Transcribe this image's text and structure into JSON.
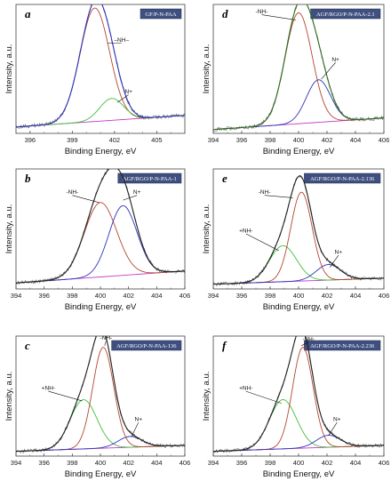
{
  "chart_data": [
    {
      "type": "line",
      "letter": "a",
      "title": "GF/P-N-PAA",
      "xlabel": "Binding Energy, eV",
      "ylabel": "Intensity, a.u.",
      "xlim": [
        395,
        407
      ],
      "xticks": [
        396,
        399,
        402,
        405
      ],
      "background": {
        "y0": 0.05,
        "y1": 0.14
      },
      "components": [
        {
          "name": "-NH-",
          "center": 400.6,
          "height": 0.88,
          "width": 1.05,
          "color": "#b5452f"
        },
        {
          "name": "N+",
          "center": 401.8,
          "height": 0.17,
          "width": 0.85,
          "color": "#3fbf3f"
        }
      ],
      "envelope_color": "#2f34b8",
      "annotations": [
        {
          "text": "–NH–",
          "x": 401.5,
          "y": 0.7,
          "label_x": 402.5,
          "label_y": 0.7
        },
        {
          "text": "N+",
          "x": 402.2,
          "y": 0.24,
          "label_x": 403.0,
          "label_y": 0.3
        }
      ]
    },
    {
      "type": "line",
      "letter": "d",
      "title": "AGF/RGO/P-N-PAA-2.1",
      "xlabel": "Binding Energy, eV",
      "ylabel": "Intensity, a.u.",
      "xlim": [
        394,
        406
      ],
      "xticks": [
        394,
        396,
        398,
        400,
        402,
        404,
        406
      ],
      "background": {
        "y0": 0.03,
        "y1": 0.12
      },
      "components": [
        {
          "name": "-NH-",
          "center": 400.0,
          "height": 0.86,
          "width": 0.95,
          "color": "#b5452f"
        },
        {
          "name": "N+",
          "center": 401.4,
          "height": 0.33,
          "width": 0.85,
          "color": "#2f34b8"
        }
      ],
      "envelope_color": "#2d6e1e",
      "annotations": [
        {
          "text": "-NH-",
          "x": 399.8,
          "y": 0.88,
          "label_x": 397.4,
          "label_y": 0.92
        },
        {
          "text": "N+",
          "x": 401.6,
          "y": 0.42,
          "label_x": 402.6,
          "label_y": 0.55
        }
      ]
    },
    {
      "type": "line",
      "letter": "b",
      "title": "AGF/RGO/P-N-PAA-1",
      "xlabel": "Binding Energy, eV",
      "ylabel": "Intensity, a.u.",
      "xlim": [
        394,
        406
      ],
      "xticks": [
        394,
        396,
        398,
        400,
        402,
        404,
        406
      ],
      "background": {
        "y0": 0.05,
        "y1": 0.15
      },
      "components": [
        {
          "name": "-NH-",
          "center": 400.0,
          "height": 0.62,
          "width": 1.15,
          "color": "#b5452f"
        },
        {
          "name": "N+",
          "center": 401.6,
          "height": 0.58,
          "width": 1.0,
          "color": "#2f34b8"
        }
      ],
      "envelope_color": "#222222",
      "annotations": [
        {
          "text": "-NH-",
          "x": 399.9,
          "y": 0.72,
          "label_x": 398.0,
          "label_y": 0.78
        },
        {
          "text": "N+",
          "x": 401.6,
          "y": 0.74,
          "label_x": 402.6,
          "label_y": 0.78
        }
      ]
    },
    {
      "type": "line",
      "letter": "e",
      "title": "AGF/RGO/P-N-PAA-2.136",
      "xlabel": "Binding Energy, eV",
      "ylabel": "Intensity, a.u.",
      "xlim": [
        394,
        406
      ],
      "xticks": [
        394,
        396,
        398,
        400,
        402,
        404,
        406
      ],
      "background": {
        "y0": 0.04,
        "y1": 0.09
      },
      "components": [
        {
          "name": "+NH-",
          "center": 398.9,
          "height": 0.3,
          "width": 0.95,
          "color": "#3fbf3f"
        },
        {
          "name": "-NH-",
          "center": 400.2,
          "height": 0.74,
          "width": 0.75,
          "color": "#b5452f"
        },
        {
          "name": "N+",
          "center": 402.1,
          "height": 0.13,
          "width": 0.85,
          "color": "#2f34b8"
        }
      ],
      "envelope_color": "#222222",
      "annotations": [
        {
          "text": "-NH-",
          "x": 399.6,
          "y": 0.76,
          "label_x": 397.6,
          "label_y": 0.78
        },
        {
          "text": "+NH-",
          "x": 398.6,
          "y": 0.32,
          "label_x": 396.3,
          "label_y": 0.46
        },
        {
          "text": "N+",
          "x": 402.2,
          "y": 0.18,
          "label_x": 402.8,
          "label_y": 0.28
        }
      ]
    },
    {
      "type": "line",
      "letter": "c",
      "title": "AGF/RGO/P-N-PAA-136",
      "xlabel": "Binding Energy, eV",
      "ylabel": "Intensity, a.u.",
      "xlim": [
        394,
        406
      ],
      "xticks": [
        394,
        396,
        398,
        400,
        402,
        404,
        406
      ],
      "background": {
        "y0": 0.04,
        "y1": 0.09
      },
      "components": [
        {
          "name": "+NH-",
          "center": 398.8,
          "height": 0.41,
          "width": 0.95,
          "color": "#3fbf3f"
        },
        {
          "name": "-NH-",
          "center": 400.2,
          "height": 0.84,
          "width": 0.75,
          "color": "#b5452f"
        },
        {
          "name": "N+",
          "center": 402.1,
          "height": 0.09,
          "width": 0.85,
          "color": "#2f34b8"
        }
      ],
      "envelope_color": "#222222",
      "annotations": [
        {
          "text": "-NH-",
          "x": 400.3,
          "y": 0.92,
          "label_x": 400.4,
          "label_y": 0.96
        },
        {
          "text": "+NH-",
          "x": 398.7,
          "y": 0.46,
          "label_x": 396.3,
          "label_y": 0.54
        },
        {
          "text": "N+",
          "x": 402.2,
          "y": 0.16,
          "label_x": 402.7,
          "label_y": 0.28
        }
      ]
    },
    {
      "type": "line",
      "letter": "f",
      "title": "AGF/RGO/P-N-PAA-2.236",
      "xlabel": "Binding Energy, eV",
      "ylabel": "Intensity, a.u.",
      "xlim": [
        394,
        406
      ],
      "xticks": [
        394,
        396,
        398,
        400,
        402,
        404,
        406
      ],
      "background": {
        "y0": 0.04,
        "y1": 0.09
      },
      "components": [
        {
          "name": "+NH-",
          "center": 398.9,
          "height": 0.41,
          "width": 0.95,
          "color": "#3fbf3f"
        },
        {
          "name": "-NH-",
          "center": 400.3,
          "height": 0.84,
          "width": 0.72,
          "color": "#b5452f"
        },
        {
          "name": "N+",
          "center": 402.1,
          "height": 0.1,
          "width": 0.85,
          "color": "#2f34b8"
        }
      ],
      "envelope_color": "#222222",
      "annotations": [
        {
          "text": "-NH-",
          "x": 400.2,
          "y": 0.92,
          "label_x": 400.7,
          "label_y": 0.95
        },
        {
          "text": "+NH-",
          "x": 398.8,
          "y": 0.44,
          "label_x": 396.3,
          "label_y": 0.54
        },
        {
          "text": "N+",
          "x": 402.1,
          "y": 0.17,
          "label_x": 402.7,
          "label_y": 0.28
        }
      ]
    }
  ]
}
